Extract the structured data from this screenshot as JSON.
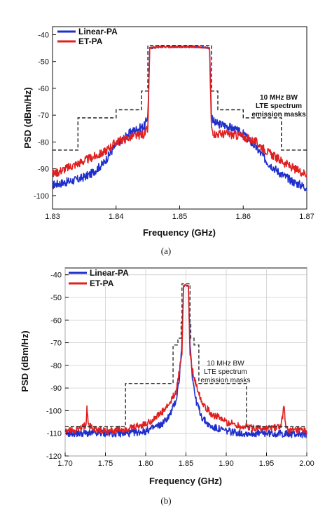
{
  "chart_data": [
    {
      "type": "line",
      "panel_label": "(a)",
      "xlabel": "Frequency (GHz)",
      "ylabel": "PSD (dBm/Hz)",
      "xlim": [
        1.83,
        1.87
      ],
      "ylim": [
        -105,
        -37
      ],
      "xticks": [
        "1.83",
        "1.84",
        "1.85",
        "1.86",
        "1.87"
      ],
      "yticks": [
        "-40",
        "-50",
        "-60",
        "-70",
        "-80",
        "-90",
        "-100"
      ],
      "legend": "top-left",
      "grid": false,
      "annotation": [
        "10 MHz BW",
        "LTE spectrum",
        "emission masks"
      ],
      "series": [
        {
          "name": "Linear-PA",
          "color": "#1f2fcc",
          "x": [
            1.83,
            1.832,
            1.834,
            1.836,
            1.838,
            1.84,
            1.8425,
            1.8445,
            1.845,
            1.8453,
            1.847,
            1.85,
            1.853,
            1.8547,
            1.855,
            1.8555,
            1.8575,
            1.86,
            1.862,
            1.864,
            1.866,
            1.868,
            1.87
          ],
          "y": [
            -96,
            -95,
            -94,
            -92,
            -88,
            -81,
            -76,
            -74,
            -70,
            -45,
            -44.5,
            -44.5,
            -44.5,
            -45,
            -70,
            -73,
            -74,
            -77,
            -82,
            -88,
            -92,
            -95,
            -97
          ]
        },
        {
          "name": "ET-PA",
          "color": "#e02020",
          "x": [
            1.83,
            1.832,
            1.834,
            1.836,
            1.838,
            1.84,
            1.8425,
            1.8445,
            1.845,
            1.8453,
            1.847,
            1.85,
            1.853,
            1.8547,
            1.855,
            1.8555,
            1.8575,
            1.86,
            1.862,
            1.864,
            1.866,
            1.868,
            1.87
          ],
          "y": [
            -92,
            -90,
            -88,
            -86,
            -84,
            -80,
            -78,
            -77,
            -75,
            -45,
            -44.5,
            -44.5,
            -44.5,
            -45,
            -75,
            -77,
            -77,
            -78,
            -80,
            -84,
            -87,
            -90,
            -92
          ]
        },
        {
          "name": "mask",
          "color": "#222222",
          "dashed": true,
          "x": [
            1.83,
            1.834,
            1.834,
            1.84,
            1.84,
            1.844,
            1.844,
            1.845,
            1.845,
            1.855,
            1.855,
            1.856,
            1.856,
            1.86,
            1.86,
            1.866,
            1.866,
            1.87
          ],
          "y": [
            -83,
            -83,
            -71,
            -71,
            -68,
            -68,
            -61,
            -61,
            -44,
            -44,
            -61,
            -61,
            -68,
            -68,
            -71,
            -71,
            -83,
            -83
          ]
        }
      ]
    },
    {
      "type": "line",
      "panel_label": "(b)",
      "xlabel": "Frequency (GHz)",
      "ylabel": "PSD (dBm/Hz)",
      "xlim": [
        1.7,
        2.0
      ],
      "ylim": [
        -120,
        -37
      ],
      "xticks": [
        "1.70",
        "1.75",
        "1.80",
        "1.85",
        "1.90",
        "1.95",
        "2.00"
      ],
      "yticks": [
        "-40",
        "-50",
        "-60",
        "-70",
        "-80",
        "-90",
        "-100",
        "-110",
        "-120"
      ],
      "legend": "top-left",
      "grid": true,
      "annotation": [
        "10 MHz BW",
        "LTE spectrum",
        "emission masks"
      ],
      "series": [
        {
          "name": "Linear-PA",
          "color": "#1f2fcc",
          "x": [
            1.7,
            1.75,
            1.78,
            1.8,
            1.82,
            1.83,
            1.838,
            1.842,
            1.845,
            1.847,
            1.85,
            1.853,
            1.855,
            1.858,
            1.862,
            1.87,
            1.88,
            1.9,
            1.92,
            1.95,
            2.0
          ],
          "y": [
            -110,
            -110,
            -110,
            -109,
            -106,
            -102,
            -95,
            -85,
            -70,
            -45,
            -44.5,
            -45,
            -70,
            -85,
            -95,
            -103,
            -107,
            -109,
            -110,
            -110,
            -110.5
          ]
        },
        {
          "name": "ET-PA",
          "color": "#e02020",
          "x": [
            1.7,
            1.72,
            1.726,
            1.727,
            1.729,
            1.735,
            1.75,
            1.78,
            1.8,
            1.82,
            1.83,
            1.838,
            1.842,
            1.845,
            1.847,
            1.85,
            1.853,
            1.855,
            1.858,
            1.862,
            1.87,
            1.88,
            1.9,
            1.92,
            1.95,
            1.968,
            1.972,
            1.973,
            1.976,
            1.98,
            2.0
          ],
          "y": [
            -109,
            -108,
            -106,
            -97,
            -106,
            -108,
            -109,
            -108,
            -106,
            -101,
            -97,
            -91,
            -82,
            -75,
            -45,
            -44.5,
            -45,
            -75,
            -82,
            -88,
            -96,
            -101,
            -105,
            -107,
            -108,
            -107,
            -97,
            -106,
            -108,
            -109,
            -109
          ]
        },
        {
          "name": "mask",
          "color": "#333333",
          "dashed": true,
          "x": [
            1.7,
            1.775,
            1.775,
            1.834,
            1.834,
            1.84,
            1.84,
            1.844,
            1.844,
            1.845,
            1.845,
            1.855,
            1.855,
            1.856,
            1.856,
            1.86,
            1.86,
            1.866,
            1.866,
            1.925,
            1.925,
            2.0
          ],
          "y": [
            -107,
            -107,
            -88,
            -88,
            -71,
            -71,
            -68,
            -68,
            -61,
            -61,
            -44,
            -44,
            -61,
            -61,
            -68,
            -68,
            -71,
            -71,
            -88,
            -88,
            -107,
            -107
          ]
        }
      ]
    }
  ]
}
